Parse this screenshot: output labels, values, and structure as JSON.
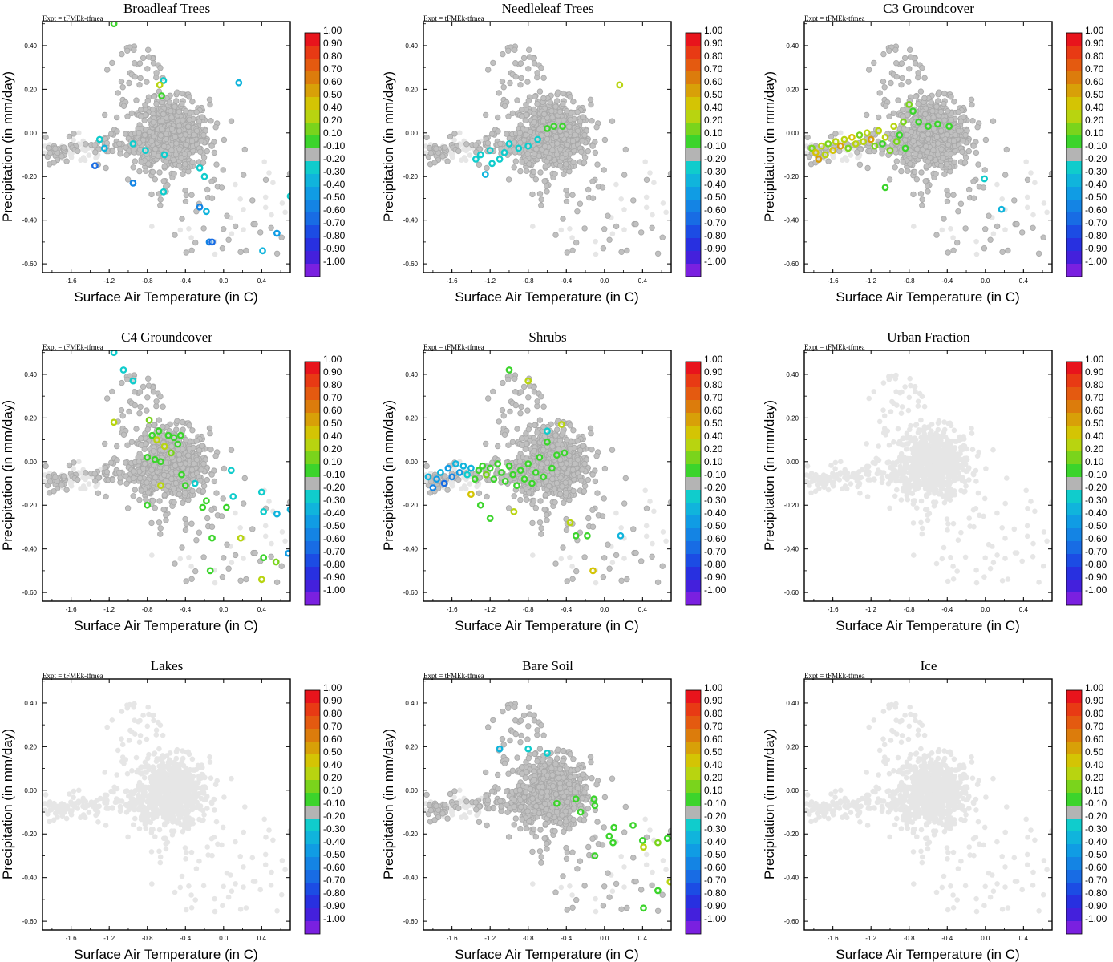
{
  "figure": {
    "expt_label": "Expt = tFMEk-tfmea",
    "xlabel": "Surface Air Temperature (in C)",
    "ylabel": "Precipitation (in mm/day)",
    "x_ticks": [
      "-1.6",
      "-1.2",
      "-0.8",
      "-0.4",
      "0.0",
      "0.4"
    ],
    "y_ticks": [
      "0.40",
      "0.20",
      "0.00",
      "-0.20",
      "-0.40",
      "-0.60"
    ],
    "colorbar_labels": [
      "1.00",
      "0.90",
      "0.80",
      "0.70",
      "0.60",
      "0.50",
      "0.40",
      "0.20",
      "0.10",
      "-0.10",
      "-0.20",
      "-0.30",
      "-0.40",
      "-0.50",
      "-0.60",
      "-0.70",
      "-0.80",
      "-0.90",
      "-1.00"
    ],
    "colorbar_colors": [
      "#e8141c",
      "#e83a14",
      "#e45a10",
      "#dc7c0c",
      "#d8a008",
      "#d4c404",
      "#b8d410",
      "#7ad41c",
      "#3cd42c",
      "#b4b4b4",
      "#10cccc",
      "#10b4dc",
      "#109ce4",
      "#1484e4",
      "#186ce4",
      "#1c4ce4",
      "#2830e0",
      "#4420dc",
      "#7a20e0"
    ],
    "neutral_color": "#b4b4b4",
    "missing_color": "#e6e6e6"
  },
  "chart_data": [
    {
      "type": "scatter",
      "title": "Broadleaf Trees",
      "xlabel": "Surface Air Temperature (in C)",
      "ylabel": "Precipitation (in mm/day)",
      "xlim": [
        -1.9,
        0.7
      ],
      "ylim": [
        -0.64,
        0.51
      ],
      "background_cloud": "gray",
      "highlights": [
        {
          "x": -1.15,
          "y": 0.5,
          "v": 0.1
        },
        {
          "x": -0.63,
          "y": 0.24,
          "v": -0.2
        },
        {
          "x": -0.67,
          "y": 0.22,
          "v": 0.3
        },
        {
          "x": -0.65,
          "y": 0.17,
          "v": 0.1
        },
        {
          "x": 0.16,
          "y": 0.23,
          "v": -0.3
        },
        {
          "x": -1.25,
          "y": -0.07,
          "v": -0.3
        },
        {
          "x": -1.3,
          "y": -0.03,
          "v": -0.2
        },
        {
          "x": -1.35,
          "y": -0.15,
          "v": -0.6
        },
        {
          "x": -0.95,
          "y": -0.23,
          "v": -0.5
        },
        {
          "x": -0.62,
          "y": -0.1,
          "v": -0.2
        },
        {
          "x": -0.25,
          "y": -0.16,
          "v": -0.2
        },
        {
          "x": -0.2,
          "y": -0.2,
          "v": -0.2
        },
        {
          "x": -0.63,
          "y": -0.27,
          "v": -0.2
        },
        {
          "x": -0.25,
          "y": -0.34,
          "v": -0.5
        },
        {
          "x": -0.18,
          "y": -0.36,
          "v": -0.3
        },
        {
          "x": -0.15,
          "y": -0.5,
          "v": -0.5
        },
        {
          "x": -0.12,
          "y": -0.5,
          "v": -0.6
        },
        {
          "x": 0.41,
          "y": -0.54,
          "v": -0.3
        },
        {
          "x": 0.56,
          "y": -0.46,
          "v": -0.4
        },
        {
          "x": 0.7,
          "y": -0.29,
          "v": -0.2
        },
        {
          "x": -0.95,
          "y": -0.05,
          "v": -0.2
        },
        {
          "x": -0.82,
          "y": -0.08,
          "v": -0.2
        }
      ]
    },
    {
      "type": "scatter",
      "title": "Needleleaf Trees",
      "xlabel": "Surface Air Temperature (in C)",
      "ylabel": "Precipitation (in mm/day)",
      "xlim": [
        -1.9,
        0.7
      ],
      "ylim": [
        -0.64,
        0.51
      ],
      "background_cloud": "gray",
      "highlights": [
        {
          "x": 0.16,
          "y": 0.22,
          "v": 0.3
        },
        {
          "x": -0.6,
          "y": 0.02,
          "v": 0.1
        },
        {
          "x": -0.53,
          "y": 0.03,
          "v": 0.1
        },
        {
          "x": -0.44,
          "y": 0.03,
          "v": 0.1
        },
        {
          "x": -1.35,
          "y": -0.12,
          "v": -0.2
        },
        {
          "x": -1.3,
          "y": -0.1,
          "v": -0.2
        },
        {
          "x": -1.25,
          "y": -0.19,
          "v": -0.3
        },
        {
          "x": -1.2,
          "y": -0.08,
          "v": -0.2
        },
        {
          "x": -1.18,
          "y": -0.14,
          "v": -0.2
        },
        {
          "x": -1.1,
          "y": -0.12,
          "v": -0.2
        },
        {
          "x": -1.05,
          "y": -0.09,
          "v": -0.2
        },
        {
          "x": -1.0,
          "y": -0.05,
          "v": -0.2
        },
        {
          "x": -0.9,
          "y": -0.07,
          "v": -0.2
        },
        {
          "x": -0.8,
          "y": -0.06,
          "v": -0.2
        },
        {
          "x": -0.7,
          "y": -0.03,
          "v": -0.2
        }
      ]
    },
    {
      "type": "scatter",
      "title": "C3 Groundcover",
      "xlabel": "Surface Air Temperature (in C)",
      "ylabel": "Precipitation (in mm/day)",
      "xlim": [
        -1.9,
        0.7
      ],
      "ylim": [
        -0.64,
        0.51
      ],
      "background_cloud": "gray",
      "highlights": [
        {
          "x": -1.82,
          "y": -0.07,
          "v": 0.2
        },
        {
          "x": -1.78,
          "y": -0.09,
          "v": 0.5
        },
        {
          "x": -1.75,
          "y": -0.12,
          "v": 0.6
        },
        {
          "x": -1.72,
          "y": -0.06,
          "v": 0.3
        },
        {
          "x": -1.68,
          "y": -0.1,
          "v": 0.4
        },
        {
          "x": -1.65,
          "y": -0.05,
          "v": 0.2
        },
        {
          "x": -1.6,
          "y": -0.08,
          "v": 0.5
        },
        {
          "x": -1.57,
          "y": -0.04,
          "v": 0.3
        },
        {
          "x": -1.52,
          "y": -0.06,
          "v": 0.6
        },
        {
          "x": -1.48,
          "y": -0.03,
          "v": 0.4
        },
        {
          "x": -1.44,
          "y": -0.07,
          "v": 0.2
        },
        {
          "x": -1.4,
          "y": -0.02,
          "v": 0.5
        },
        {
          "x": -1.36,
          "y": -0.05,
          "v": 0.3
        },
        {
          "x": -1.32,
          "y": -0.01,
          "v": 0.2
        },
        {
          "x": -1.28,
          "y": -0.04,
          "v": 0.4
        },
        {
          "x": -1.24,
          "y": 0.0,
          "v": 0.3
        },
        {
          "x": -1.2,
          "y": -0.03,
          "v": 0.6
        },
        {
          "x": -1.16,
          "y": -0.06,
          "v": 0.2
        },
        {
          "x": -1.12,
          "y": 0.01,
          "v": 0.4
        },
        {
          "x": -1.08,
          "y": -0.05,
          "v": 0.1
        },
        {
          "x": -1.05,
          "y": -0.02,
          "v": 0.3
        },
        {
          "x": -1.0,
          "y": -0.08,
          "v": 0.2
        },
        {
          "x": -0.96,
          "y": 0.03,
          "v": 0.3
        },
        {
          "x": -0.93,
          "y": -0.04,
          "v": 0.2
        },
        {
          "x": -0.9,
          "y": -0.01,
          "v": 0.1
        },
        {
          "x": -0.86,
          "y": 0.05,
          "v": 0.2
        },
        {
          "x": -0.84,
          "y": -0.07,
          "v": 0.1
        },
        {
          "x": -0.8,
          "y": 0.13,
          "v": 0.2
        },
        {
          "x": -0.76,
          "y": 0.1,
          "v": 0.1
        },
        {
          "x": -0.7,
          "y": 0.05,
          "v": 0.1
        },
        {
          "x": -0.6,
          "y": 0.03,
          "v": 0.1
        },
        {
          "x": -0.5,
          "y": 0.04,
          "v": 0.1
        },
        {
          "x": -0.38,
          "y": 0.03,
          "v": 0.1
        },
        {
          "x": -1.05,
          "y": -0.25,
          "v": 0.1
        },
        {
          "x": -0.01,
          "y": -0.21,
          "v": -0.2
        },
        {
          "x": 0.17,
          "y": -0.35,
          "v": -0.3
        }
      ]
    },
    {
      "type": "scatter",
      "title": "C4 Groundcover",
      "xlabel": "Surface Air Temperature (in C)",
      "ylabel": "Precipitation (in mm/day)",
      "xlim": [
        -1.9,
        0.7
      ],
      "ylim": [
        -0.64,
        0.51
      ],
      "background_cloud": "gray",
      "highlights": [
        {
          "x": -1.15,
          "y": 0.5,
          "v": -0.2
        },
        {
          "x": -1.05,
          "y": 0.42,
          "v": -0.2
        },
        {
          "x": -0.95,
          "y": 0.37,
          "v": -0.2
        },
        {
          "x": -1.15,
          "y": 0.18,
          "v": 0.3
        },
        {
          "x": -0.78,
          "y": 0.19,
          "v": 0.2
        },
        {
          "x": -0.75,
          "y": 0.12,
          "v": 0.1
        },
        {
          "x": -0.7,
          "y": 0.1,
          "v": 0.4
        },
        {
          "x": -0.68,
          "y": 0.14,
          "v": 0.1
        },
        {
          "x": -0.62,
          "y": 0.07,
          "v": 0.3
        },
        {
          "x": -0.58,
          "y": 0.12,
          "v": 0.1
        },
        {
          "x": -0.55,
          "y": 0.04,
          "v": 0.2
        },
        {
          "x": -0.52,
          "y": 0.11,
          "v": 0.1
        },
        {
          "x": -0.48,
          "y": 0.08,
          "v": 0.1
        },
        {
          "x": -0.45,
          "y": 0.12,
          "v": 0.1
        },
        {
          "x": -0.8,
          "y": 0.02,
          "v": 0.1
        },
        {
          "x": -0.72,
          "y": 0.01,
          "v": 0.1
        },
        {
          "x": -0.66,
          "y": 0.0,
          "v": 0.1
        },
        {
          "x": -0.44,
          "y": -0.06,
          "v": 0.1
        },
        {
          "x": -0.4,
          "y": -0.11,
          "v": 0.1
        },
        {
          "x": -0.66,
          "y": -0.11,
          "v": 0.4
        },
        {
          "x": -0.8,
          "y": -0.2,
          "v": 0.1
        },
        {
          "x": -0.22,
          "y": -0.21,
          "v": 0.1
        },
        {
          "x": -0.18,
          "y": -0.18,
          "v": 0.1
        },
        {
          "x": -0.12,
          "y": -0.35,
          "v": 0.1
        },
        {
          "x": -0.14,
          "y": -0.5,
          "v": 0.1
        },
        {
          "x": 0.18,
          "y": -0.35,
          "v": 0.3
        },
        {
          "x": 0.4,
          "y": -0.54,
          "v": 0.3
        },
        {
          "x": 0.55,
          "y": -0.46,
          "v": 0.2
        },
        {
          "x": 0.42,
          "y": -0.44,
          "v": 0.1
        },
        {
          "x": 0.03,
          "y": -0.21,
          "v": 0.1
        },
        {
          "x": 0.08,
          "y": -0.04,
          "v": -0.2
        },
        {
          "x": 0.1,
          "y": -0.16,
          "v": -0.2
        },
        {
          "x": 0.42,
          "y": -0.23,
          "v": -0.2
        },
        {
          "x": 0.56,
          "y": -0.24,
          "v": -0.3
        },
        {
          "x": 0.7,
          "y": -0.22,
          "v": -0.3
        },
        {
          "x": 0.68,
          "y": -0.42,
          "v": -0.4
        },
        {
          "x": 0.4,
          "y": -0.14,
          "v": -0.2
        },
        {
          "x": -0.3,
          "y": -0.1,
          "v": -0.2
        }
      ]
    },
    {
      "type": "scatter",
      "title": "Shrubs",
      "xlabel": "Surface Air Temperature (in C)",
      "ylabel": "Precipitation (in mm/day)",
      "xlim": [
        -1.9,
        0.7
      ],
      "ylim": [
        -0.64,
        0.51
      ],
      "background_cloud": "gray",
      "highlights": [
        {
          "x": -1.85,
          "y": -0.07,
          "v": -0.3
        },
        {
          "x": -1.8,
          "y": -0.12,
          "v": -0.5
        },
        {
          "x": -1.76,
          "y": -0.08,
          "v": -0.4
        },
        {
          "x": -1.72,
          "y": -0.05,
          "v": -0.3
        },
        {
          "x": -1.68,
          "y": -0.1,
          "v": -0.6
        },
        {
          "x": -1.64,
          "y": -0.03,
          "v": -0.4
        },
        {
          "x": -1.6,
          "y": -0.07,
          "v": -0.5
        },
        {
          "x": -1.56,
          "y": -0.01,
          "v": -0.3
        },
        {
          "x": -1.52,
          "y": -0.05,
          "v": -0.4
        },
        {
          "x": -1.48,
          "y": -0.02,
          "v": -0.3
        },
        {
          "x": -1.44,
          "y": -0.06,
          "v": -0.2
        },
        {
          "x": -1.4,
          "y": -0.03,
          "v": -0.3
        },
        {
          "x": -1.36,
          "y": -0.08,
          "v": 0.1
        },
        {
          "x": -1.32,
          "y": -0.04,
          "v": 0.1
        },
        {
          "x": -1.28,
          "y": -0.02,
          "v": 0.1
        },
        {
          "x": -1.24,
          "y": -0.06,
          "v": 0.2
        },
        {
          "x": -1.2,
          "y": -0.03,
          "v": 0.1
        },
        {
          "x": -1.16,
          "y": -0.08,
          "v": 0.1
        },
        {
          "x": -1.12,
          "y": -0.01,
          "v": 0.1
        },
        {
          "x": -1.08,
          "y": -0.05,
          "v": 0.1
        },
        {
          "x": -1.04,
          "y": -0.09,
          "v": 0.1
        },
        {
          "x": -1.0,
          "y": -0.02,
          "v": 0.1
        },
        {
          "x": -0.96,
          "y": -0.06,
          "v": 0.1
        },
        {
          "x": -0.92,
          "y": -0.11,
          "v": 0.1
        },
        {
          "x": -0.88,
          "y": -0.04,
          "v": 0.1
        },
        {
          "x": -0.84,
          "y": -0.08,
          "v": 0.1
        },
        {
          "x": -0.8,
          "y": -0.01,
          "v": 0.1
        },
        {
          "x": -0.76,
          "y": -0.1,
          "v": 0.1
        },
        {
          "x": -0.72,
          "y": -0.05,
          "v": 0.1
        },
        {
          "x": -0.68,
          "y": 0.02,
          "v": 0.1
        },
        {
          "x": -0.64,
          "y": -0.07,
          "v": 0.1
        },
        {
          "x": -0.6,
          "y": 0.09,
          "v": 0.1
        },
        {
          "x": -0.55,
          "y": -0.03,
          "v": 0.1
        },
        {
          "x": -0.5,
          "y": 0.03,
          "v": 0.1
        },
        {
          "x": -0.45,
          "y": 0.17,
          "v": 0.3
        },
        {
          "x": -0.42,
          "y": 0.04,
          "v": 0.1
        },
        {
          "x": -1.0,
          "y": 0.42,
          "v": 0.1
        },
        {
          "x": -0.8,
          "y": 0.37,
          "v": 0.4
        },
        {
          "x": -1.4,
          "y": -0.15,
          "v": 0.5
        },
        {
          "x": -1.3,
          "y": -0.2,
          "v": 0.1
        },
        {
          "x": -1.2,
          "y": -0.26,
          "v": 0.1
        },
        {
          "x": -0.95,
          "y": -0.23,
          "v": 0.3
        },
        {
          "x": -0.36,
          "y": -0.28,
          "v": 0.4
        },
        {
          "x": -0.3,
          "y": -0.34,
          "v": 0.1
        },
        {
          "x": -0.18,
          "y": -0.34,
          "v": 0.1
        },
        {
          "x": -0.12,
          "y": -0.5,
          "v": 0.5
        },
        {
          "x": 0.17,
          "y": -0.34,
          "v": -0.3
        },
        {
          "x": -0.6,
          "y": 0.14,
          "v": -0.2
        }
      ]
    },
    {
      "type": "scatter",
      "title": "Urban Fraction",
      "xlabel": "Surface Air Temperature (in C)",
      "ylabel": "Precipitation (in mm/day)",
      "xlim": [
        -1.9,
        0.7
      ],
      "ylim": [
        -0.64,
        0.51
      ],
      "background_cloud": "light",
      "highlights": []
    },
    {
      "type": "scatter",
      "title": "Lakes",
      "xlabel": "Surface Air Temperature (in C)",
      "ylabel": "Precipitation (in mm/day)",
      "xlim": [
        -1.9,
        0.7
      ],
      "ylim": [
        -0.64,
        0.51
      ],
      "background_cloud": "light",
      "highlights": []
    },
    {
      "type": "scatter",
      "title": "Bare Soil",
      "xlabel": "Surface Air Temperature (in C)",
      "ylabel": "Precipitation (in mm/day)",
      "xlim": [
        -1.9,
        0.7
      ],
      "ylim": [
        -0.64,
        0.51
      ],
      "background_cloud": "gray",
      "highlights": [
        {
          "x": -1.1,
          "y": 0.19,
          "v": -0.3
        },
        {
          "x": -0.8,
          "y": 0.19,
          "v": -0.2
        },
        {
          "x": -0.6,
          "y": 0.17,
          "v": -0.2
        },
        {
          "x": -0.5,
          "y": -0.06,
          "v": 0.1
        },
        {
          "x": -0.3,
          "y": -0.04,
          "v": 0.1
        },
        {
          "x": -0.25,
          "y": -0.1,
          "v": 0.1
        },
        {
          "x": -0.11,
          "y": -0.04,
          "v": 0.1
        },
        {
          "x": -0.1,
          "y": -0.07,
          "v": 0.1
        },
        {
          "x": 0.05,
          "y": -0.21,
          "v": 0.1
        },
        {
          "x": 0.1,
          "y": -0.17,
          "v": 0.1
        },
        {
          "x": 0.09,
          "y": -0.24,
          "v": 0.1
        },
        {
          "x": 0.3,
          "y": -0.16,
          "v": 0.1
        },
        {
          "x": 0.4,
          "y": -0.23,
          "v": 0.1
        },
        {
          "x": 0.41,
          "y": -0.26,
          "v": 0.3
        },
        {
          "x": 0.56,
          "y": -0.24,
          "v": 0.2
        },
        {
          "x": 0.66,
          "y": -0.22,
          "v": 0.1
        },
        {
          "x": 0.56,
          "y": -0.46,
          "v": 0.1
        },
        {
          "x": 0.41,
          "y": -0.54,
          "v": 0.1
        },
        {
          "x": 0.69,
          "y": -0.42,
          "v": 0.3
        },
        {
          "x": -0.1,
          "y": -0.3,
          "v": 0.1
        }
      ]
    },
    {
      "type": "scatter",
      "title": "Ice",
      "xlabel": "Surface Air Temperature (in C)",
      "ylabel": "Precipitation (in mm/day)",
      "xlim": [
        -1.9,
        0.7
      ],
      "ylim": [
        -0.64,
        0.51
      ],
      "background_cloud": "light",
      "highlights": []
    }
  ]
}
